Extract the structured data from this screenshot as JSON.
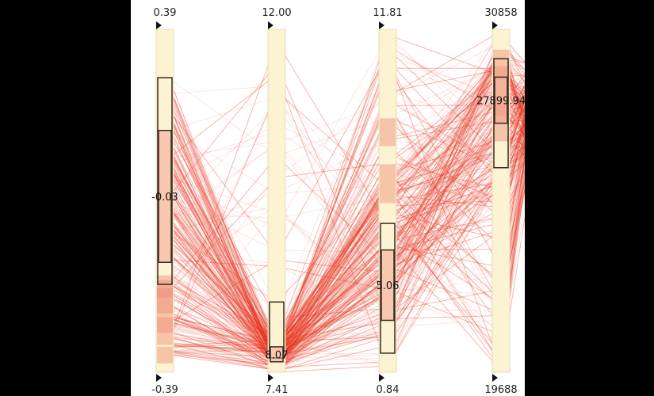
{
  "chart_data": {
    "type": "parallel-coordinates",
    "line_color": "#e8311a",
    "axis_fill": "#fbf3d2",
    "box_stroke": "#3a2a22",
    "axes": [
      {
        "top_label": "0.39",
        "bottom_label": "-0.39",
        "median_label": "-0.03",
        "range": [
          -0.39,
          0.39
        ],
        "box_outer": [
          -0.19,
          0.28
        ],
        "box_inner": [
          -0.14,
          0.16
        ],
        "heat": [
          [
            0.12,
            0.25
          ],
          [
            0.18,
            0.4
          ],
          [
            0.25,
            0.2
          ],
          [
            0.05,
            0.15
          ],
          [
            0.22,
            0.3
          ]
        ]
      },
      {
        "top_label": "12.00",
        "bottom_label": "7.41",
        "median_label": "8.07",
        "range": [
          7.41,
          12.0
        ],
        "box_outer": [
          7.6,
          8.35
        ],
        "box_inner": [
          7.55,
          7.75
        ],
        "heat": []
      },
      {
        "top_label": "11.81",
        "bottom_label": "0.84",
        "median_label": "5.06",
        "range": [
          0.84,
          11.81
        ],
        "box_outer": [
          1.45,
          5.6
        ],
        "box_inner": [
          2.5,
          4.75
        ],
        "heat": [
          [
            0.55,
            0.35
          ],
          [
            0.7,
            0.25
          ]
        ]
      },
      {
        "top_label": "30858",
        "bottom_label": "19688",
        "median_label": "27899.94",
        "range": [
          19688,
          30858
        ],
        "box_outer": [
          26350,
          29900
        ],
        "box_inner": [
          27800,
          29300
        ],
        "heat": [
          [
            0.73,
            0.35
          ],
          [
            0.82,
            0.45
          ],
          [
            0.9,
            0.25
          ]
        ]
      }
    ]
  }
}
